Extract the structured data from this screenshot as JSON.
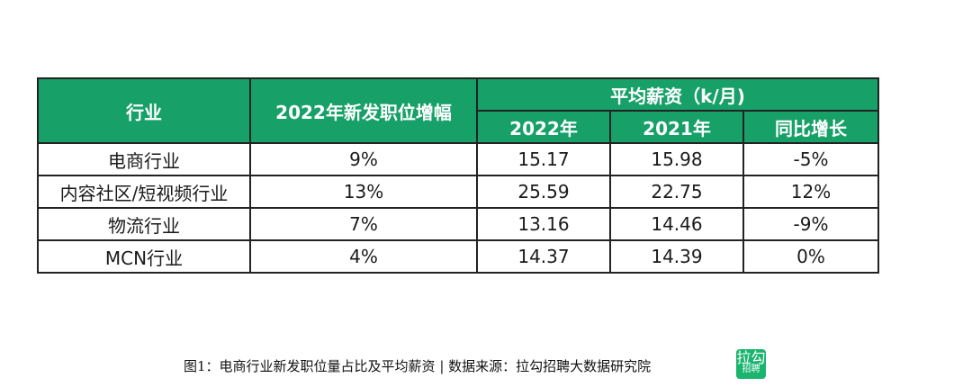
{
  "table": {
    "header": {
      "industry": "行业",
      "growth": "2022年新发职位增幅",
      "salary_group": "平均薪资（k/月)",
      "y2022": "2022年",
      "y2021": "2021年",
      "yoy": "同比增长"
    },
    "rows": [
      {
        "industry": "电商行业",
        "growth": "9%",
        "s2022": "15.17",
        "s2021": "15.98",
        "yoy": "-5%"
      },
      {
        "industry": "内容社区/短视频行业",
        "growth": "13%",
        "s2022": "25.59",
        "s2021": "22.75",
        "yoy": "12%"
      },
      {
        "industry": "物流行业",
        "growth": "7%",
        "s2022": "13.16",
        "s2021": "14.46",
        "yoy": "-9%"
      },
      {
        "industry": "MCN行业",
        "growth": "4%",
        "s2022": "14.37",
        "s2021": "14.39",
        "yoy": "0%"
      }
    ]
  },
  "caption": "图1：电商行业新发职位量占比及平均薪资 | 数据来源：拉勾招聘大数据研究院",
  "logo": {
    "line1": "拉勾",
    "line2": "招聘",
    "color": "#19b46e"
  },
  "colors": {
    "header_bg": "#17a068",
    "header_text": "#ffffff"
  }
}
